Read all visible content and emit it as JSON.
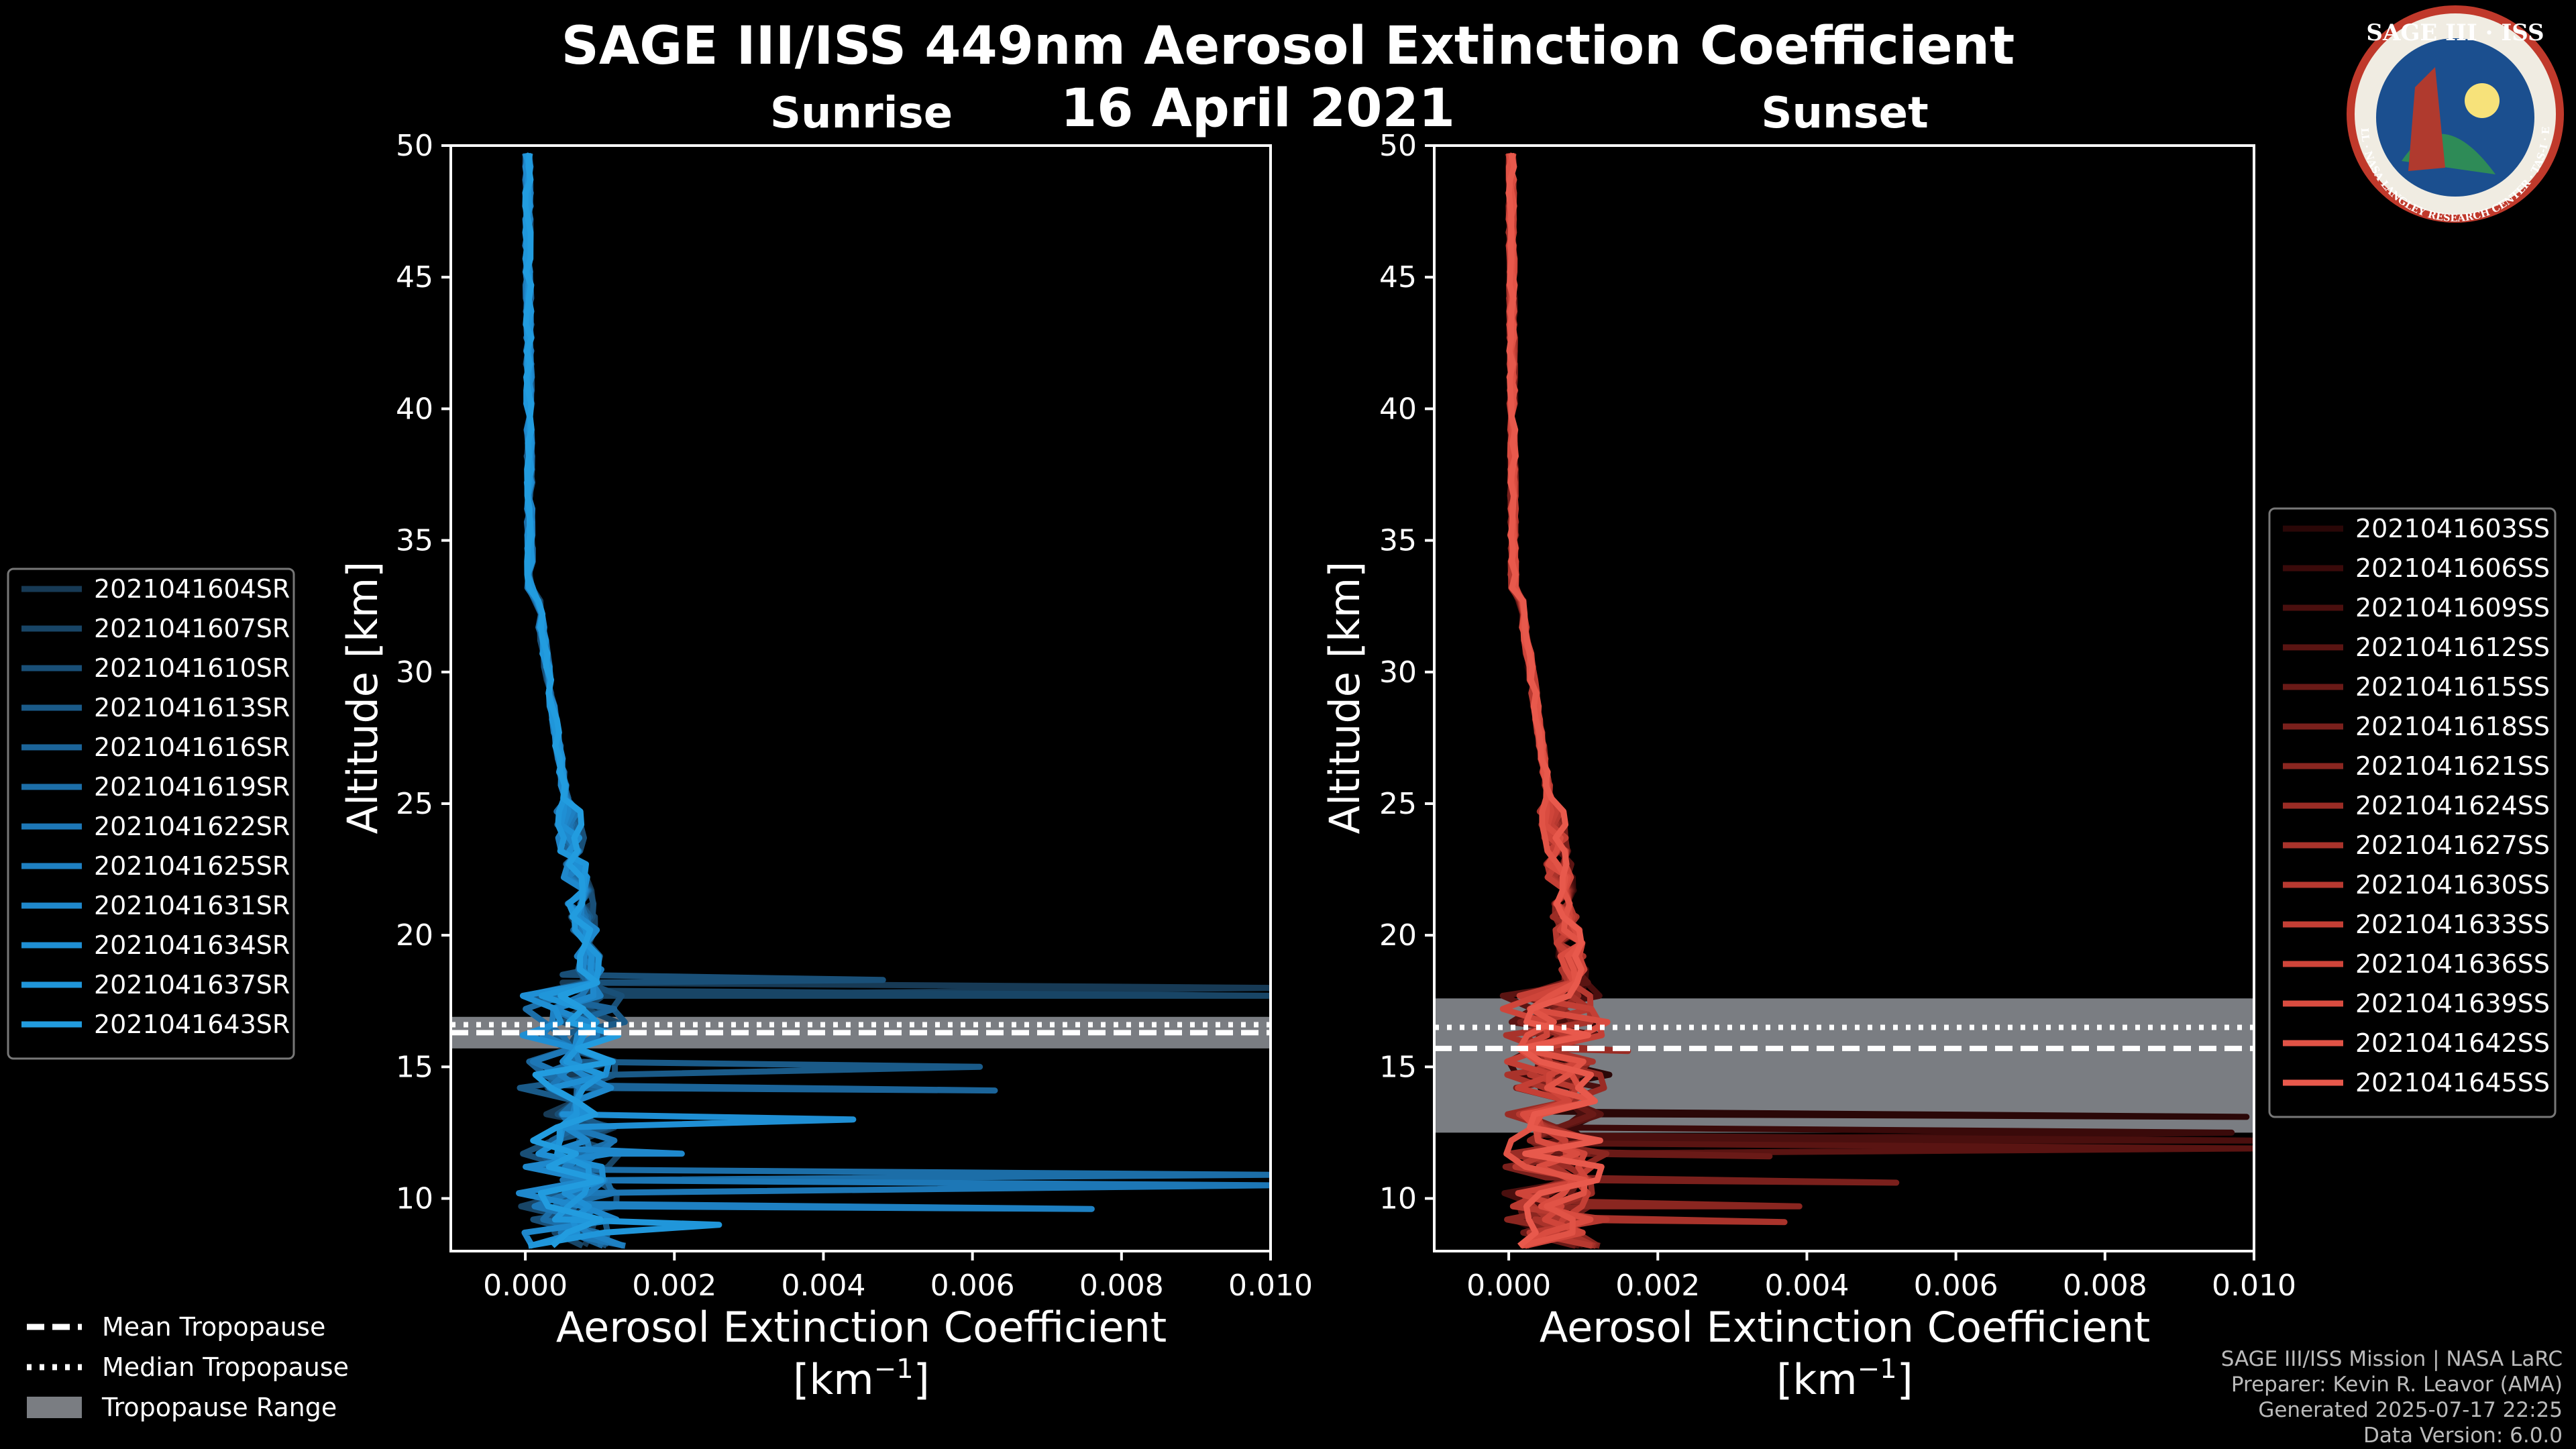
{
  "title": "SAGE III/ISS 449nm Aerosol Extinction Coefficient",
  "date": "16 April 2021",
  "logo": {
    "text": "SAGE III · ISS",
    "ring_text": "BALL · NASA LANGLEY RESEARCH CENTER · TAS-I · ESA"
  },
  "footer": {
    "line1": "SAGE III/ISS Mission | NASA LaRC",
    "line2": "Preparer: Kevin R. Leavor (AMA)",
    "line3": "Generated 2025-07-17 22:25",
    "line4": "Data Version: 6.0.0"
  },
  "tropopause_legend": {
    "mean": "Mean Tropopause",
    "median": "Median Tropopause",
    "range": "Tropopause Range"
  },
  "colors": {
    "sunrise": "#1f8fd0",
    "sunset": "#e8584a",
    "tropopause_range": "#7a7d82",
    "background": "#000000"
  },
  "chart_data": [
    {
      "type": "line",
      "title": "Sunrise",
      "xlabel": "Aerosol Extinction Coefficient",
      "xunit": "[km",
      "xunit_exp": "−1",
      "xunit_close": "]",
      "ylabel": "Altitude [km]",
      "xlim": [
        -0.001,
        0.01
      ],
      "ylim": [
        8,
        50
      ],
      "xticks": [
        "0.000",
        "0.002",
        "0.004",
        "0.006",
        "0.008",
        "0.010"
      ],
      "xtick_values": [
        0,
        0.002,
        0.004,
        0.006,
        0.008,
        0.01
      ],
      "yticks": [
        10,
        15,
        20,
        25,
        30,
        35,
        40,
        45,
        50
      ],
      "tropopause": {
        "mean": 16.3,
        "median": 16.6,
        "range": [
          15.7,
          16.9
        ]
      },
      "series": [
        {
          "name": "2021041604SR",
          "color": "#173a55"
        },
        {
          "name": "2021041607SR",
          "color": "#184566"
        },
        {
          "name": "2021041610SR",
          "color": "#194f77"
        },
        {
          "name": "2021041613SR",
          "color": "#1a5a88"
        },
        {
          "name": "2021041616SR",
          "color": "#1b6499"
        },
        {
          "name": "2021041619SR",
          "color": "#1c6ea8"
        },
        {
          "name": "2021041622SR",
          "color": "#1d77b6"
        },
        {
          "name": "2021041625SR",
          "color": "#1e80c2"
        },
        {
          "name": "2021041631SR",
          "color": "#1f88cc"
        },
        {
          "name": "2021041634SR",
          "color": "#1f8fd4"
        },
        {
          "name": "2021041637SR",
          "color": "#2096da"
        },
        {
          "name": "2021041643SR",
          "color": "#229cdf"
        }
      ]
    },
    {
      "type": "line",
      "title": "Sunset",
      "xlabel": "Aerosol Extinction Coefficient",
      "xunit": "[km",
      "xunit_exp": "−1",
      "xunit_close": "]",
      "ylabel": "Altitude [km]",
      "xlim": [
        -0.001,
        0.01
      ],
      "ylim": [
        8,
        50
      ],
      "xticks": [
        "0.000",
        "0.002",
        "0.004",
        "0.006",
        "0.008",
        "0.010"
      ],
      "xtick_values": [
        0,
        0.002,
        0.004,
        0.006,
        0.008,
        0.01
      ],
      "yticks": [
        10,
        15,
        20,
        25,
        30,
        35,
        40,
        45,
        50
      ],
      "tropopause": {
        "mean": 15.7,
        "median": 16.5,
        "range": [
          12.5,
          17.6
        ]
      },
      "series": [
        {
          "name": "2021041603SS",
          "color": "#2a0707"
        },
        {
          "name": "2021041606SS",
          "color": "#3a0a0a"
        },
        {
          "name": "2021041609SS",
          "color": "#4a0f0e"
        },
        {
          "name": "2021041612SS",
          "color": "#5a1412"
        },
        {
          "name": "2021041615SS",
          "color": "#6a1a17"
        },
        {
          "name": "2021041618SS",
          "color": "#7a201c"
        },
        {
          "name": "2021041621SS",
          "color": "#8a2620"
        },
        {
          "name": "2021041624SS",
          "color": "#9a2c25"
        },
        {
          "name": "2021041627SS",
          "color": "#a9332b"
        },
        {
          "name": "2021041630SS",
          "color": "#b73930"
        },
        {
          "name": "2021041633SS",
          "color": "#c43f35"
        },
        {
          "name": "2021041636SS",
          "color": "#cf453a"
        },
        {
          "name": "2021041639SS",
          "color": "#d94c40"
        },
        {
          "name": "2021041642SS",
          "color": "#e15346"
        },
        {
          "name": "2021041645SS",
          "color": "#e8594c"
        }
      ]
    }
  ]
}
